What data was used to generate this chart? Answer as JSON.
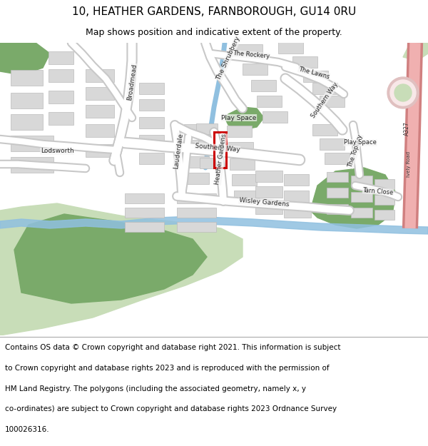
{
  "title": "10, HEATHER GARDENS, FARNBOROUGH, GU14 0RU",
  "subtitle": "Map shows position and indicative extent of the property.",
  "copyright_lines": [
    "Contains OS data © Crown copyright and database right 2021. This information is subject",
    "to Crown copyright and database rights 2023 and is reproduced with the permission of",
    "HM Land Registry. The polygons (including the associated geometry, namely x, y",
    "co-ordinates) are subject to Crown copyright and database rights 2023 Ordnance Survey",
    "100026316."
  ],
  "bg_map_color": "#f5f5f5",
  "road_color": "#ffffff",
  "road_outline_color": "#c8c8c8",
  "building_color": "#d8d8d8",
  "building_outline_color": "#bbbbbb",
  "green_area_color": "#7aaa6a",
  "green_light_color": "#c8ddb8",
  "water_color": "#90c0e0",
  "a327_color": "#e89090",
  "highlight_color": "#cc0000",
  "title_fontsize": 11,
  "subtitle_fontsize": 9,
  "copyright_fontsize": 7.5,
  "figsize": [
    6.0,
    6.25
  ],
  "dpi": 100
}
